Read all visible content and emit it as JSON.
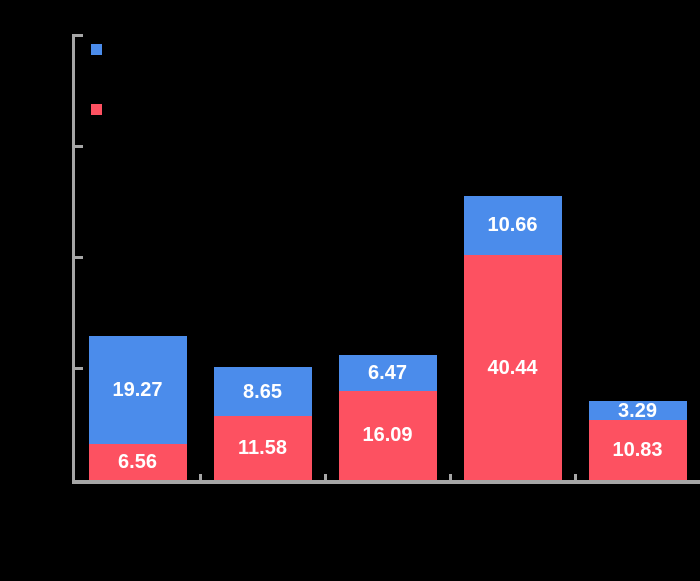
{
  "background_color": "#000000",
  "axis_color": "#a6a6a6",
  "value_label_color": "#ffffff",
  "legend": {
    "position": "top-left",
    "entries": [
      {
        "label": "",
        "color": "#4b8ceb"
      },
      {
        "label": "",
        "color": "#fd5161"
      }
    ]
  },
  "chart_data": {
    "type": "bar",
    "stacked": true,
    "title": "",
    "xlabel": "",
    "ylabel": "",
    "categories": [
      "",
      "",
      "",
      "",
      ""
    ],
    "series": [
      {
        "name": "",
        "color": "#4b8ceb",
        "stack_position": "top",
        "values": [
          19.27,
          8.65,
          6.47,
          10.66,
          3.29
        ]
      },
      {
        "name": "",
        "color": "#fd5161",
        "stack_position": "bottom",
        "values": [
          6.56,
          11.58,
          16.09,
          40.44,
          10.83
        ]
      }
    ],
    "value_labels": {
      "visible": true,
      "decimals": 2,
      "color": "#ffffff"
    },
    "ylim": [
      0,
      80
    ],
    "y_tick_step": 20,
    "grid": false,
    "axis_tick_direction": "inward",
    "tick_text_visible": false,
    "legend_text_visible": false
  }
}
